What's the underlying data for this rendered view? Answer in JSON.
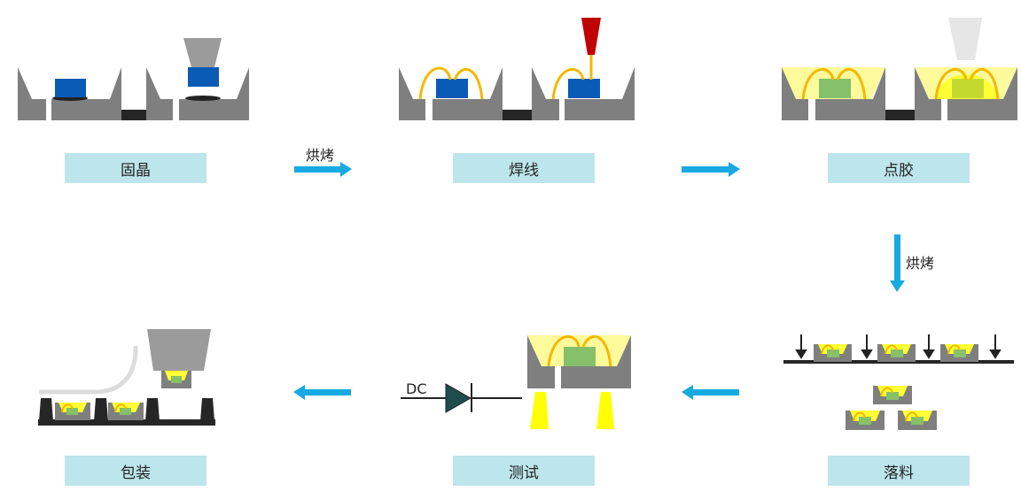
{
  "steps": [
    {
      "id": "die-bond",
      "label": "固晶"
    },
    {
      "id": "wire-bond",
      "label": "焊线"
    },
    {
      "id": "dispense",
      "label": "点胶"
    },
    {
      "id": "sort",
      "label": "落料"
    },
    {
      "id": "test",
      "label": "测试"
    },
    {
      "id": "package",
      "label": "包装"
    }
  ],
  "arrows": {
    "bake_1": "烘烤",
    "bake_2": "烘烤"
  },
  "test": {
    "dc_label": "DC"
  },
  "colors": {
    "label_bg": "#bde5ec",
    "arrow": "#17a9e1",
    "cup": "#7f7f7f",
    "chip": "#0a5bb5",
    "wire": "#f5b800",
    "needle": "#c00000",
    "glue": "#fdfa9c",
    "phosphor_chip": "#86c06a",
    "light": "#ffff00",
    "tape": "#262626"
  }
}
